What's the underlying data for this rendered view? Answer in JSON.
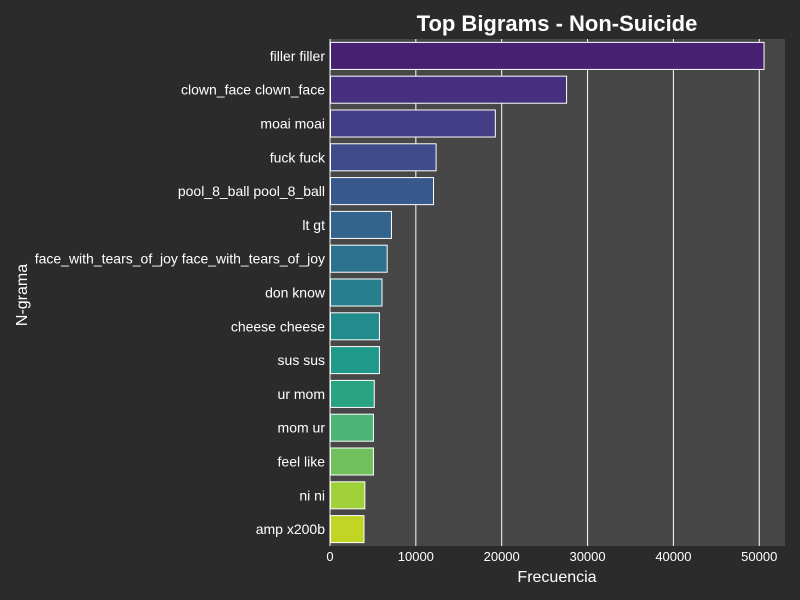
{
  "chart_data": {
    "type": "bar",
    "orientation": "horizontal",
    "title": "Top Bigrams - Non-Suicide",
    "xlabel": "Frecuencia",
    "ylabel": "N-grama",
    "xlim": [
      0,
      53000
    ],
    "xticks": [
      0,
      10000,
      20000,
      30000,
      40000,
      50000
    ],
    "grid": true,
    "categories": [
      "filler filler",
      "clown_face clown_face",
      "moai moai",
      "fuck fuck",
      "pool_8_ball pool_8_ball",
      "lt gt",
      "face_with_tears_of_joy face_with_tears_of_joy",
      "don know",
      "cheese cheese",
      "sus sus",
      "ur mom",
      "mom ur",
      "feel like",
      "ni ni",
      "amp x200b"
    ],
    "values": [
      50500,
      27500,
      19200,
      12300,
      12000,
      7100,
      6600,
      6000,
      5700,
      5700,
      5100,
      5000,
      5000,
      4000,
      3900
    ],
    "colors": [
      "#482072",
      "#46307e",
      "#433e85",
      "#3e4c8a",
      "#38598c",
      "#32648e",
      "#2c718e",
      "#277f8e",
      "#228c8d",
      "#1f998a",
      "#2aa383",
      "#4cb474",
      "#70c05e",
      "#a0d03a",
      "#c0d524"
    ],
    "colors_meta": {
      "page_background": "#2b2b2b",
      "plot_background": "#474747",
      "grid": "#ffffff",
      "bar_edge": "#ffffff",
      "text": "#ffffff"
    }
  }
}
